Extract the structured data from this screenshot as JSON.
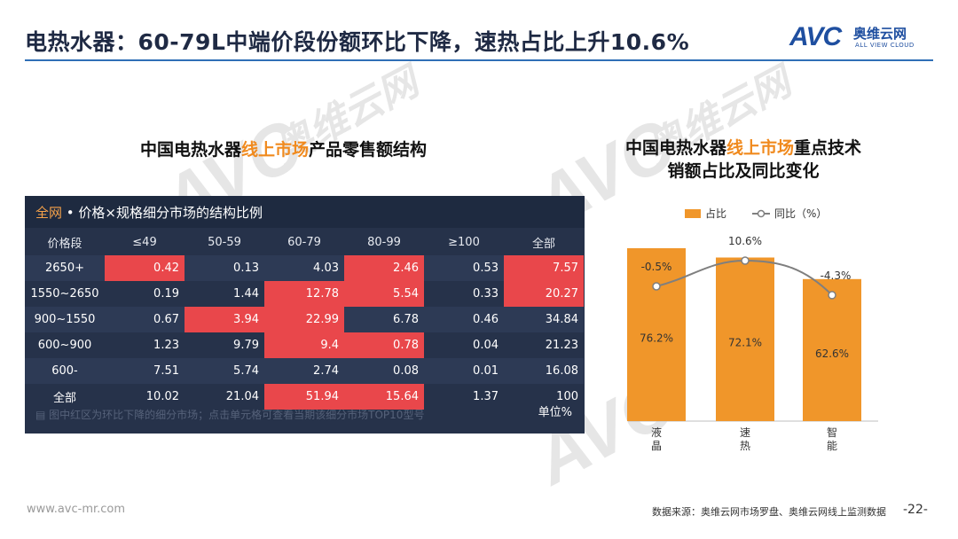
{
  "header": {
    "title": "电热水器：60-79L中端价段份额环比下降，速热占比上升10.6%",
    "logo_mark": "AVC",
    "logo_cn": "奥维云网",
    "logo_en": "ALL VIEW CLOUD"
  },
  "watermark": {
    "cn": "奥维云网",
    "en": "ALL VIEW CLOUD",
    "mark": "AVC"
  },
  "left": {
    "title_pre": "中国电热水器",
    "title_hl": "线上市场",
    "title_post": "产品零售额结构",
    "panel_title_a": "全网",
    "panel_title_b": " • 价格×规格细分市场的结构比例",
    "columns": [
      "价格段",
      "≤49",
      "50-59",
      "60-79",
      "80-99",
      "≥100",
      "全部"
    ],
    "rows": [
      {
        "label": "2650+",
        "cells": [
          "0.42",
          "0.13",
          "4.03",
          "2.46",
          "0.53",
          "7.57"
        ],
        "red": [
          true,
          false,
          false,
          true,
          false,
          true
        ]
      },
      {
        "label": "1550~2650",
        "cells": [
          "0.19",
          "1.44",
          "12.78",
          "5.54",
          "0.33",
          "20.27"
        ],
        "red": [
          false,
          false,
          true,
          true,
          false,
          true
        ]
      },
      {
        "label": "900~1550",
        "cells": [
          "0.67",
          "3.94",
          "22.99",
          "6.78",
          "0.46",
          "34.84"
        ],
        "red": [
          false,
          true,
          true,
          false,
          false,
          false
        ]
      },
      {
        "label": "600~900",
        "cells": [
          "1.23",
          "9.79",
          "9.4",
          "0.78",
          "0.04",
          "21.23"
        ],
        "red": [
          false,
          false,
          true,
          true,
          false,
          false
        ]
      },
      {
        "label": "600-",
        "cells": [
          "7.51",
          "5.74",
          "2.74",
          "0.08",
          "0.01",
          "16.08"
        ],
        "red": [
          false,
          false,
          false,
          false,
          false,
          false
        ]
      },
      {
        "label": "全部",
        "cells": [
          "10.02",
          "21.04",
          "51.94",
          "15.64",
          "1.37",
          "100"
        ],
        "red": [
          false,
          false,
          true,
          true,
          false,
          false
        ]
      }
    ],
    "note": "图中红区为环比下降的细分市场；点击单元格可查看当期该细分市场TOP10型号",
    "unit": "单位%"
  },
  "right": {
    "title_line1_pre": "中国电热水器",
    "title_line1_hl": "线上市场",
    "title_line1_post": "重点技术",
    "title_line2": "销额占比及同比变化"
  },
  "chart_data": {
    "type": "bar",
    "categories": [
      "液晶",
      "速热",
      "智能"
    ],
    "series": [
      {
        "name": "占比",
        "kind": "bar",
        "values": [
          76.2,
          72.1,
          62.6
        ],
        "labels": [
          "76.2%",
          "72.1%",
          "62.6%"
        ],
        "color": "#f0962a"
      },
      {
        "name": "同比（%）",
        "kind": "line",
        "values": [
          -0.5,
          10.6,
          -4.3
        ],
        "labels": [
          "-0.5%",
          "10.6%",
          "-4.3%"
        ],
        "color": "#7f7f7f"
      }
    ],
    "title": "",
    "legend": "top"
  },
  "footer": {
    "site": "www.avc-mr.com",
    "source": "数据来源：奥维云网市场罗盘、奥维云网线上监测数据",
    "page": "-22-"
  }
}
